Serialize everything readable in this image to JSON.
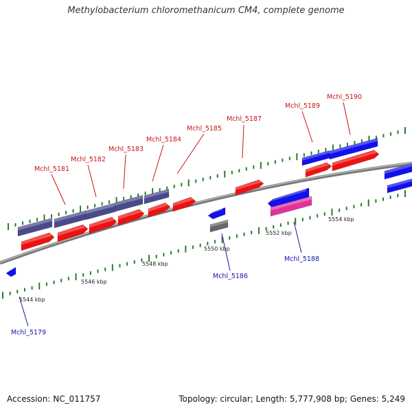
{
  "title": "Methylobacterium chloromethanicum CM4, complete genome",
  "footer": {
    "accession": "Accession: NC_011757",
    "summary": "Topology: circular; Length: 5,777,908 bp; Genes: 5,249"
  },
  "colors": {
    "label_red": "#cc1111",
    "label_blue": "#1111aa",
    "gene_red": "#ee1111",
    "gene_blue": "#1111ee",
    "gene_purple": "#4a4a8a",
    "gene_gray": "#666666",
    "gene_pink": "#e0339a",
    "tick_green": "#2a7a2a",
    "backbone": "#888888"
  },
  "scale_labels": [
    "5544 kbp",
    "5546 kbp",
    "5548 kbp",
    "5550 kbp",
    "5552 kbp",
    "5554 kbp"
  ],
  "gene_labels": [
    {
      "text": "Mchl_5181",
      "strand": "plus"
    },
    {
      "text": "Mchl_5182",
      "strand": "plus"
    },
    {
      "text": "Mchl_5183",
      "strand": "plus"
    },
    {
      "text": "Mchl_5184",
      "strand": "plus"
    },
    {
      "text": "Mchl_5185",
      "strand": "plus"
    },
    {
      "text": "Mchl_5187",
      "strand": "plus"
    },
    {
      "text": "Mchl_5189",
      "strand": "plus"
    },
    {
      "text": "Mchl_5190",
      "strand": "plus"
    },
    {
      "text": "Mchl_5186",
      "strand": "minus"
    },
    {
      "text": "Mchl_5188",
      "strand": "minus"
    },
    {
      "text": "Mchl_5179",
      "strand": "minus"
    }
  ]
}
